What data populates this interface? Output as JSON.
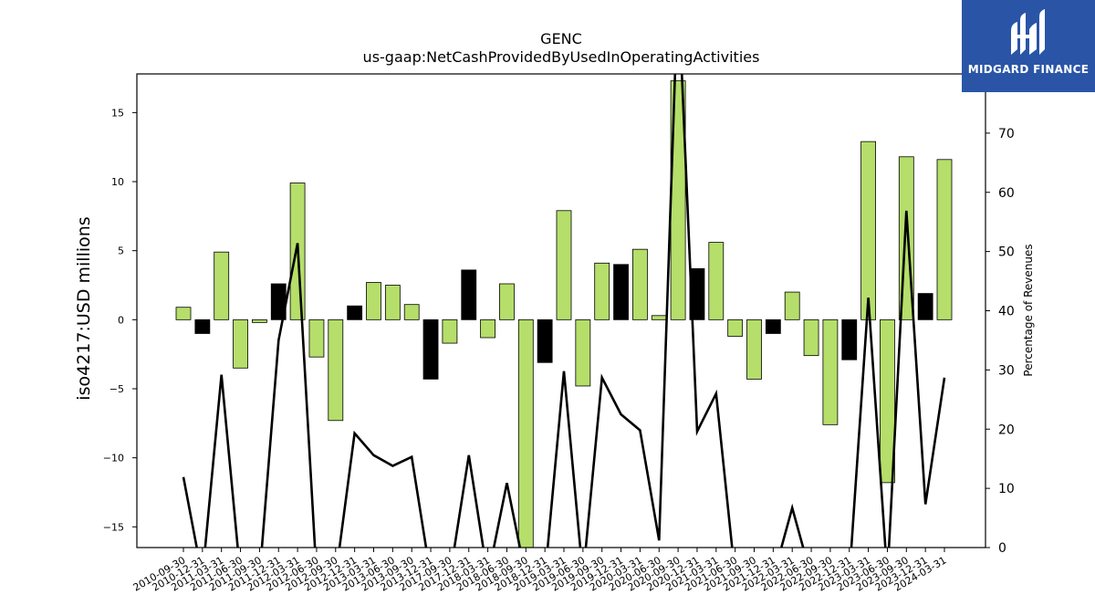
{
  "brand": {
    "name": "MIDGARD FINANCE",
    "color": "#2a55a7"
  },
  "chart_data": {
    "type": "bar",
    "title": "GENC",
    "subtitle": "us-gaap:NetCashProvidedByUsedInOperatingActivities",
    "ylabel": "iso4217:USD  millions",
    "ylabel_right": "Percentage of Revenues",
    "ylim": [
      -16.5,
      17.8
    ],
    "ylim_right": [
      0,
      80
    ],
    "yticks": [
      -15,
      -10,
      -5,
      0,
      5,
      10,
      15
    ],
    "yticks_right": [
      0,
      10,
      20,
      30,
      40,
      50,
      60,
      70
    ],
    "grid": false,
    "colors": {
      "positive_change_bar": "#b5de6a",
      "negative_change_bar": "#000000",
      "line": "#000000"
    },
    "categories": [
      "2010-09-30",
      "2010-12-31",
      "2011-03-31",
      "2011-06-30",
      "2011-09-30",
      "2011-12-31",
      "2012-03-31",
      "2012-06-30",
      "2012-09-30",
      "2012-12-31",
      "2013-03-31",
      "2013-06-30",
      "2013-09-30",
      "2013-12-31",
      "2017-09-30",
      "2017-12-31",
      "2018-03-31",
      "2018-06-30",
      "2018-09-30",
      "2018-12-31",
      "2019-03-31",
      "2019-06-30",
      "2019-09-30",
      "2019-12-31",
      "2020-03-31",
      "2020-06-30",
      "2020-09-30",
      "2020-12-31",
      "2021-03-31",
      "2021-06-30",
      "2021-09-30",
      "2021-12-31",
      "2022-03-31",
      "2022-06-30",
      "2022-09-30",
      "2022-12-31",
      "2023-03-31",
      "2023-06-30",
      "2023-09-30",
      "2023-12-31",
      "2024-03-31"
    ],
    "series": [
      {
        "kind": "bar",
        "values": [
          0.9,
          -1.0,
          4.9,
          -3.5,
          -0.2,
          2.6,
          9.9,
          -2.7,
          -7.3,
          1.0,
          2.7,
          2.5,
          1.1,
          -4.3,
          -1.7,
          3.6,
          -1.3,
          2.6,
          -16.5,
          -3.1,
          7.9,
          -4.8,
          4.1,
          4.0,
          5.1,
          0.3,
          17.3,
          3.7,
          5.6,
          -1.2,
          -4.3,
          -1.0,
          2.0,
          -2.6,
          -7.6,
          -2.9,
          12.9,
          -11.8,
          11.8,
          1.9,
          11.6
        ],
        "bar_colors": [
          "#b5de6a",
          "#000000",
          "#b5de6a",
          "#b5de6a",
          "#b5de6a",
          "#000000",
          "#b5de6a",
          "#b5de6a",
          "#b5de6a",
          "#000000",
          "#b5de6a",
          "#b5de6a",
          "#b5de6a",
          "#000000",
          "#b5de6a",
          "#000000",
          "#b5de6a",
          "#b5de6a",
          "#b5de6a",
          "#000000",
          "#b5de6a",
          "#b5de6a",
          "#b5de6a",
          "#000000",
          "#b5de6a",
          "#b5de6a",
          "#b5de6a",
          "#000000",
          "#b5de6a",
          "#b5de6a",
          "#b5de6a",
          "#000000",
          "#b5de6a",
          "#b5de6a",
          "#b5de6a",
          "#000000",
          "#b5de6a",
          "#b5de6a",
          "#b5de6a",
          "#000000",
          "#b5de6a"
        ]
      },
      {
        "kind": "line",
        "axis": "right",
        "values": [
          11.9,
          -5,
          29.2,
          -5,
          -5,
          35,
          51.4,
          -5,
          -5,
          19.3,
          15.6,
          13.8,
          15.3,
          -5,
          -5,
          15.6,
          -5,
          10.9,
          -5,
          -5,
          29.8,
          -5,
          28.7,
          22.5,
          19.8,
          1.2,
          95,
          19.6,
          26,
          -5,
          -5,
          -5,
          6.7,
          -5,
          -5,
          -5,
          42.2,
          -5,
          56.9,
          7.3,
          28.7
        ]
      }
    ]
  }
}
